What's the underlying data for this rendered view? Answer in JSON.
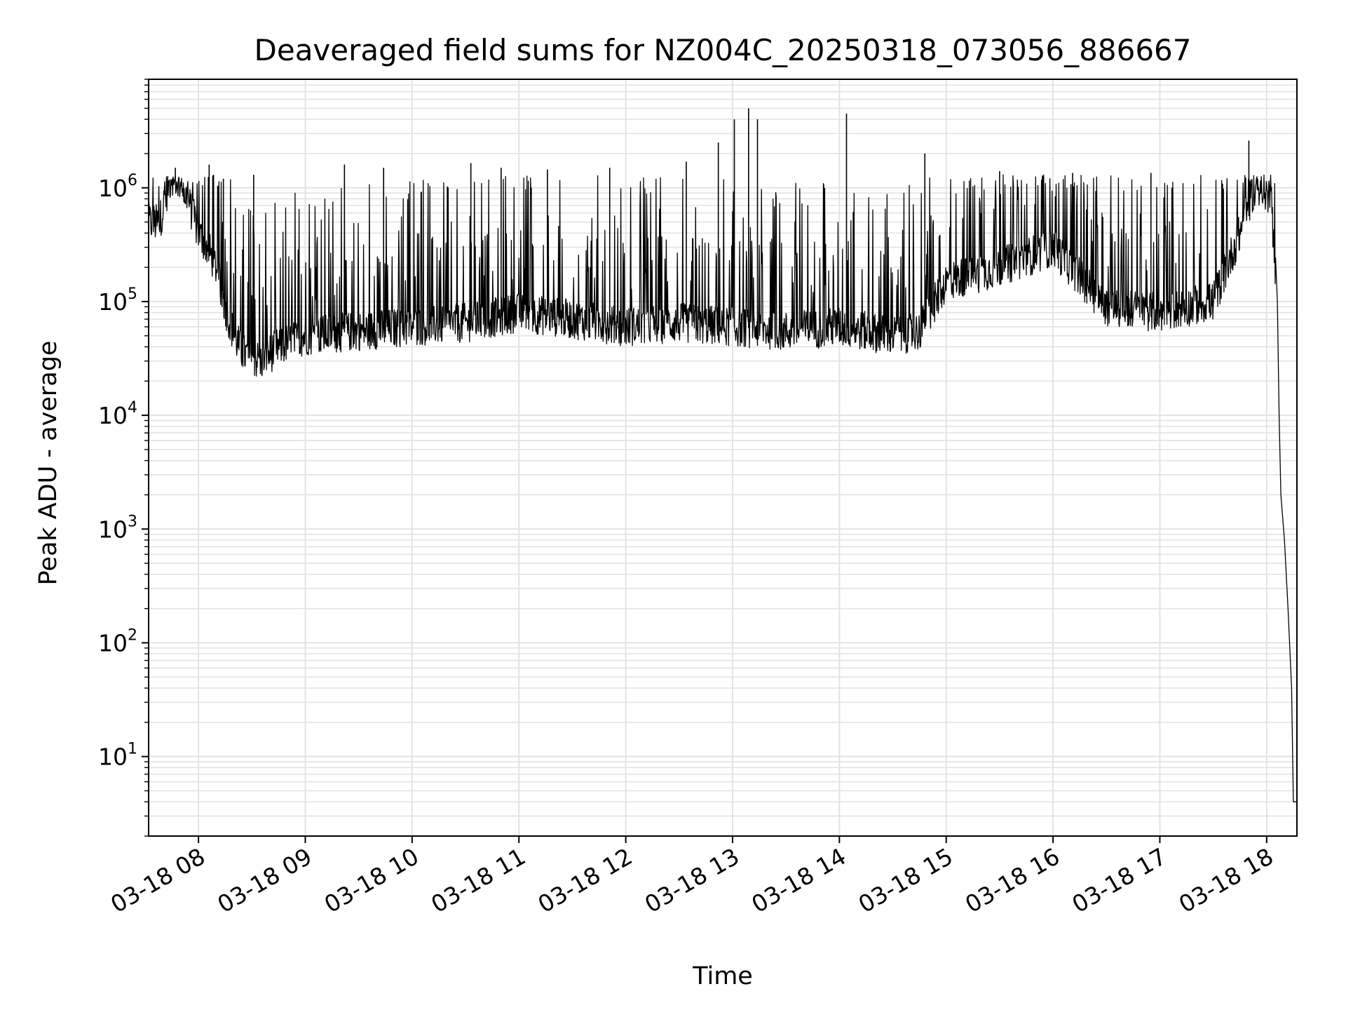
{
  "chart_data": {
    "type": "line",
    "title": "Deaveraged field sums for NZ004C_20250318_073056_886667",
    "xlabel": "Time",
    "ylabel": "Peak ADU - average",
    "x_scale": "time",
    "y_scale": "log",
    "xlim": [
      "03-18 07:32",
      "03-18 18:17"
    ],
    "ylim": [
      2,
      9000000
    ],
    "grid": true,
    "x_ticks": [
      "03-18 08",
      "03-18 09",
      "03-18 10",
      "03-18 11",
      "03-18 12",
      "03-18 13",
      "03-18 14",
      "03-18 15",
      "03-18 16",
      "03-18 17",
      "03-18 18"
    ],
    "y_ticks": [
      {
        "value": 10,
        "base": "10",
        "exp": "1"
      },
      {
        "value": 100,
        "base": "10",
        "exp": "2"
      },
      {
        "value": 1000,
        "base": "10",
        "exp": "3"
      },
      {
        "value": 10000,
        "base": "10",
        "exp": "4"
      },
      {
        "value": 100000,
        "base": "10",
        "exp": "5"
      },
      {
        "value": 1000000,
        "base": "10",
        "exp": "6"
      }
    ],
    "series": [
      {
        "color": "#000000",
        "points": [
          [
            "03-18 07:32",
            500000
          ],
          [
            "03-18 07:38",
            480000
          ],
          [
            "03-18 07:42",
            900000
          ],
          [
            "03-18 07:45",
            1300000
          ],
          [
            "03-18 07:50",
            1100000
          ],
          [
            "03-18 07:55",
            700000
          ],
          [
            "03-18 08:00",
            400000
          ],
          [
            "03-18 08:05",
            300000
          ],
          [
            "03-18 08:10",
            200000
          ],
          [
            "03-18 08:15",
            90000
          ],
          [
            "03-18 08:20",
            50000
          ],
          [
            "03-18 08:25",
            35000
          ],
          [
            "03-18 08:35",
            30000
          ],
          [
            "03-18 08:45",
            40000
          ],
          [
            "03-18 09:00",
            50000
          ],
          [
            "03-18 09:30",
            55000
          ],
          [
            "03-18 10:00",
            60000
          ],
          [
            "03-18 10:30",
            65000
          ],
          [
            "03-18 11:00",
            80000
          ],
          [
            "03-18 11:30",
            70000
          ],
          [
            "03-18 12:00",
            60000
          ],
          [
            "03-18 12:30",
            65000
          ],
          [
            "03-18 13:00",
            60000
          ],
          [
            "03-18 13:30",
            55000
          ],
          [
            "03-18 14:00",
            60000
          ],
          [
            "03-18 14:30",
            50000
          ],
          [
            "03-18 14:45",
            55000
          ],
          [
            "03-18 15:00",
            150000
          ],
          [
            "03-18 15:30",
            200000
          ],
          [
            "03-18 16:00",
            300000
          ],
          [
            "03-18 16:30",
            90000
          ],
          [
            "03-18 17:00",
            80000
          ],
          [
            "03-18 17:30",
            100000
          ],
          [
            "03-18 17:45",
            400000
          ],
          [
            "03-18 17:52",
            900000
          ],
          [
            "03-18 17:57",
            1100000
          ],
          [
            "03-18 18:00",
            900000
          ],
          [
            "03-18 18:03",
            600000
          ],
          [
            "03-18 18:06",
            100000
          ],
          [
            "03-18 18:07",
            10000
          ],
          [
            "03-18 18:08",
            2000
          ],
          [
            "03-18 18:10",
            800
          ],
          [
            "03-18 18:12",
            200
          ],
          [
            "03-18 18:14",
            40
          ],
          [
            "03-18 18:15",
            4
          ],
          [
            "03-18 18:17",
            4
          ]
        ],
        "spikes": [
          [
            "03-18 07:47",
            1500000
          ],
          [
            "03-18 08:06",
            1600000
          ],
          [
            "03-18 08:14",
            1200000
          ],
          [
            "03-18 08:31",
            1300000
          ],
          [
            "03-18 09:22",
            1600000
          ],
          [
            "03-18 09:44",
            1500000
          ],
          [
            "03-18 10:33",
            1650000
          ],
          [
            "03-18 10:50",
            1500000
          ],
          [
            "03-18 11:16",
            1450000
          ],
          [
            "03-18 11:51",
            1500000
          ],
          [
            "03-18 12:34",
            1700000
          ],
          [
            "03-18 12:52",
            2500000
          ],
          [
            "03-18 13:01",
            4000000
          ],
          [
            "03-18 13:09",
            5000000
          ],
          [
            "03-18 13:14",
            4000000
          ],
          [
            "03-18 14:04",
            4500000
          ],
          [
            "03-18 14:48",
            2000000
          ],
          [
            "03-18 15:30",
            1400000
          ],
          [
            "03-18 16:11",
            1350000
          ],
          [
            "03-18 16:55",
            1350000
          ],
          [
            "03-18 17:50",
            2600000
          ]
        ]
      }
    ]
  }
}
